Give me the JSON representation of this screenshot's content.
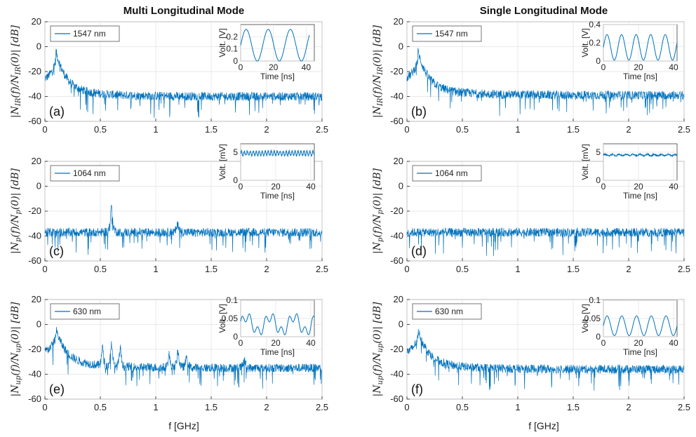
{
  "columns": [
    {
      "title": "Multi Longitudinal Mode"
    },
    {
      "title": "Single Longitudinal Mode"
    }
  ],
  "xlabel": "f [GHz]",
  "colors": {
    "line": "#0072BD",
    "axis": "#222222",
    "grid": "#e3e3e3"
  },
  "chart_data": [
    {
      "type": "line",
      "label": "(a)",
      "legend": "1547 nm",
      "ylabel": "|N_IR(f)/N_IR(0)| [dB]",
      "xlim": [
        0,
        2.5
      ],
      "ylim": [
        -60,
        20
      ],
      "xticks": [
        "0",
        "0.5",
        "1",
        "1.5",
        "2",
        "2.5"
      ],
      "yticks": [
        "20",
        "0",
        "-20",
        "-40",
        "-60"
      ],
      "series": [
        {
          "trace": {
            "peak_x": 0.1,
            "peak_y": -10,
            "floor_y": -40,
            "spurs": []
          }
        }
      ],
      "inset": {
        "type": "line",
        "ylabel": "Volt. [V]",
        "xlabel": "Time [ns]",
        "xticks": [
          "0",
          "20",
          "40"
        ],
        "yticks": [
          "0",
          "0.1",
          "0.2"
        ],
        "xlim": [
          0,
          45
        ],
        "ylim": [
          0,
          0.3
        ],
        "signal": "sine",
        "period_ns": 13.5,
        "amplitude": 0.13,
        "offset": 0.13
      }
    },
    {
      "type": "line",
      "label": "(b)",
      "legend": "1547 nm",
      "ylabel": "|N_IR(f)/N_IR(0)| [dB]",
      "xlim": [
        0,
        2.5
      ],
      "ylim": [
        -60,
        20
      ],
      "xticks": [
        "0",
        "0.5",
        "1",
        "1.5",
        "2",
        "2.5"
      ],
      "yticks": [
        "20",
        "0",
        "-20",
        "-40",
        "-60"
      ],
      "series": [
        {
          "trace": {
            "peak_x": 0.1,
            "peak_y": -10,
            "floor_y": -39,
            "spurs": []
          }
        }
      ],
      "inset": {
        "type": "line",
        "ylabel": "Volt. [V]",
        "xlabel": "Time [ns]",
        "xticks": [
          "0",
          "20",
          "40"
        ],
        "yticks": [
          "0",
          "0.2",
          "0.4"
        ],
        "xlim": [
          0,
          42
        ],
        "ylim": [
          0,
          0.4
        ],
        "signal": "sine",
        "period_ns": 8.3,
        "amplitude": 0.14,
        "offset": 0.15
      }
    },
    {
      "type": "line",
      "label": "(c)",
      "legend": "1064 nm",
      "ylabel": "|N_p(f)/N_p(0)| [dB]",
      "xlim": [
        0,
        2.5
      ],
      "ylim": [
        -60,
        20
      ],
      "xticks": [
        "0",
        "0.5",
        "1",
        "1.5",
        "2",
        "2.5"
      ],
      "yticks": [
        "20",
        "0",
        "-20",
        "-40",
        "-60"
      ],
      "series": [
        {
          "trace": {
            "peak_x": 0.0,
            "peak_y": -36,
            "floor_y": -37,
            "spurs": [
              {
                "x": 0.6,
                "y": -14
              },
              {
                "x": 1.2,
                "y": -29
              }
            ]
          }
        }
      ],
      "inset": {
        "type": "line",
        "ylabel": "Volt. [mV]",
        "xlabel": "Time [ns]",
        "xticks": [
          "0",
          "20",
          "40"
        ],
        "yticks": [
          "5",
          "0"
        ],
        "xlim": [
          0,
          42
        ],
        "ylim": [
          0,
          6.5
        ],
        "signal": "ripple",
        "period_ns": 1.7,
        "amplitude": 0.4,
        "offset": 4.8
      }
    },
    {
      "type": "line",
      "label": "(d)",
      "legend": "1064 nm",
      "ylabel": "|N_p(f)/N_p(0)| [dB]",
      "xlim": [
        0,
        2.5
      ],
      "ylim": [
        -60,
        20
      ],
      "xticks": [
        "0",
        "0.5",
        "1",
        "1.5",
        "2",
        "2.5"
      ],
      "yticks": [
        "20",
        "0",
        "-20",
        "-40",
        "-60"
      ],
      "series": [
        {
          "trace": {
            "peak_x": 0.0,
            "peak_y": -36,
            "floor_y": -37,
            "spurs": []
          }
        }
      ],
      "inset": {
        "type": "line",
        "ylabel": "Volt. [mV]",
        "xlabel": "Time [ns]",
        "xticks": [
          "0",
          "20",
          "40"
        ],
        "yticks": [
          "5",
          "0"
        ],
        "xlim": [
          0,
          42
        ],
        "ylim": [
          0,
          6.5
        ],
        "signal": "flat",
        "period_ns": 4,
        "amplitude": 0.12,
        "offset": 4.5
      }
    },
    {
      "type": "line",
      "label": "(e)",
      "legend": "630 nm",
      "ylabel": "|N_up(f)/N_up(0)| [dB]",
      "xlim": [
        0,
        2.5
      ],
      "ylim": [
        -60,
        20
      ],
      "xticks": [
        "0",
        "0.5",
        "1",
        "1.5",
        "2",
        "2.5"
      ],
      "yticks": [
        "20",
        "0",
        "-20",
        "-40",
        "-60"
      ],
      "series": [
        {
          "trace": {
            "peak_x": 0.1,
            "peak_y": -10,
            "floor_y": -35,
            "spurs": [
              {
                "x": 0.52,
                "y": -15
              },
              {
                "x": 0.6,
                "y": -12
              },
              {
                "x": 0.68,
                "y": -16
              },
              {
                "x": 1.12,
                "y": -23
              },
              {
                "x": 1.2,
                "y": -19
              },
              {
                "x": 1.28,
                "y": -23
              },
              {
                "x": 1.8,
                "y": -27
              }
            ]
          }
        }
      ],
      "inset": {
        "type": "line",
        "ylabel": "Volt. [V]",
        "xlabel": "Time [ns]",
        "xticks": [
          "0",
          "20",
          "40"
        ],
        "yticks": [
          "0",
          "0.05",
          "0.1"
        ],
        "xlim": [
          0,
          42
        ],
        "ylim": [
          0,
          0.1
        ],
        "signal": "double",
        "period_ns": 13.5,
        "amplitude": 0.035,
        "offset": 0.03
      }
    },
    {
      "type": "line",
      "label": "(f)",
      "legend": "630 nm",
      "ylabel": "|N_up(f)/N_up(0)| [dB]",
      "xlim": [
        0,
        2.5
      ],
      "ylim": [
        -60,
        20
      ],
      "xticks": [
        "0",
        "0.5",
        "1",
        "1.5",
        "2",
        "2.5"
      ],
      "yticks": [
        "20",
        "0",
        "-20",
        "-40",
        "-60"
      ],
      "series": [
        {
          "trace": {
            "peak_x": 0.1,
            "peak_y": -10,
            "floor_y": -36,
            "spurs": []
          }
        }
      ],
      "inset": {
        "type": "line",
        "ylabel": "Volt. [V]",
        "xlabel": "Time [ns]",
        "xticks": [
          "0",
          "20",
          "40"
        ],
        "yticks": [
          "0",
          "0.05",
          "0.1"
        ],
        "xlim": [
          0,
          42
        ],
        "ylim": [
          0,
          0.1
        ],
        "signal": "sine",
        "period_ns": 8.4,
        "amplitude": 0.027,
        "offset": 0.03
      }
    }
  ]
}
